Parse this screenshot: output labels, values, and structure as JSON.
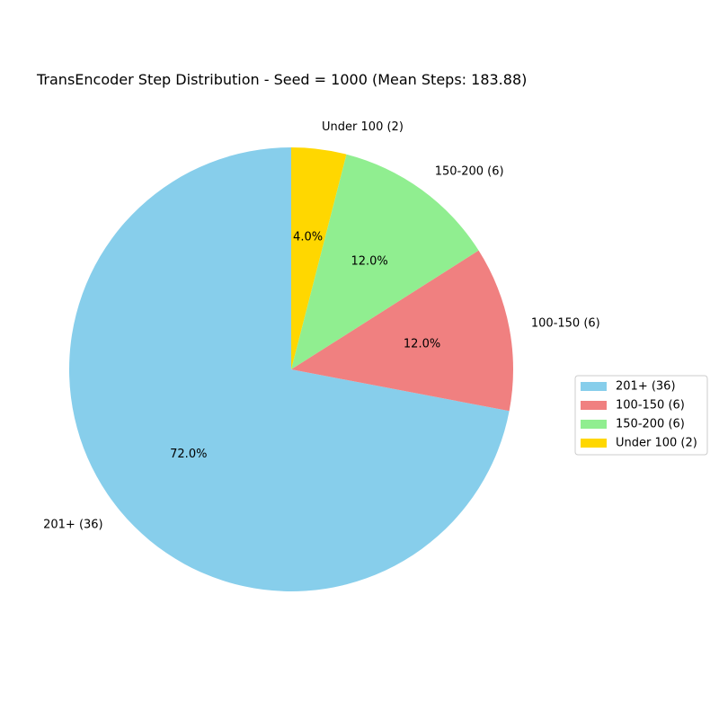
{
  "chart_data": {
    "type": "pie",
    "title": "TransEncoder Step Distribution - Seed = 1000 (Mean Steps: 183.88)",
    "slices": [
      {
        "label": "201+ (36)",
        "value": 36,
        "percent_label": "72.0%",
        "color": "#87CEEB"
      },
      {
        "label": "100-150 (6)",
        "value": 6,
        "percent_label": "12.0%",
        "color": "#F08080"
      },
      {
        "label": "150-200 (6)",
        "value": 6,
        "percent_label": "12.0%",
        "color": "#90EE90"
      },
      {
        "label": "Under 100 (2)",
        "value": 2,
        "percent_label": "4.0%",
        "color": "#FFD700"
      }
    ],
    "start_angle_deg": 90,
    "direction": "counterclockwise",
    "legend_placement": "center-right"
  }
}
